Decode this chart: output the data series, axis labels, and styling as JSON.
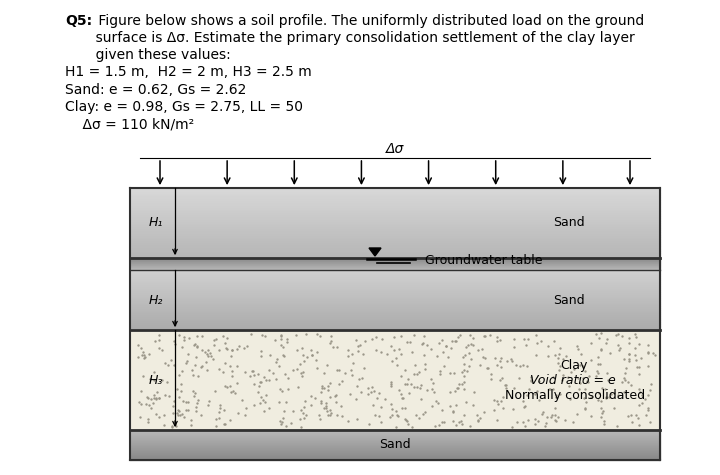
{
  "bg_color": "#ffffff",
  "border_color": "#303030",
  "sand1_color_top": "#d8d8d8",
  "sand1_color_bot": "#b8b8b8",
  "gwt_band_top": "#888888",
  "gwt_band_bot": "#b0b0b0",
  "sand2_color_top": "#d0d0d0",
  "sand2_color_bot": "#aaaaaa",
  "clay_color": "#f0ece0",
  "clay_dot_color": "#aaa898",
  "sand_bot_color_top": "#b8b8b8",
  "sand_bot_color_bot": "#888888",
  "arrow_label": "Δσ",
  "H1_label": "H₁",
  "H2_label": "H₂",
  "H3_label": "H₃",
  "sand_label": "Sand",
  "sand2_label": "Sand",
  "clay_label": "Clay",
  "void_label": "Void ratio = e",
  "nc_label": "Normally consolidated",
  "sand_bottom_label": "Sand",
  "gwt_label": "Groundwater table",
  "q5_bold": "Q5:",
  "line_title": " Figure below shows a soil profile. The uniformly distributed load on the ground",
  "line2_title": "       surface is Δσ. Estimate the primary consolidation settlement of the clay layer",
  "line3_title": "       given these values:",
  "line_h": "H1 = 1.5 m,  H2 = 2 m, H3 = 2.5 m",
  "line_sand": "Sand: e = 0.62, Gs = 2.62",
  "line_clay": "Clay: e = 0.98, Gs = 2.75, LL = 50",
  "line_sigma": "    Δσ = 110 kN/m²"
}
